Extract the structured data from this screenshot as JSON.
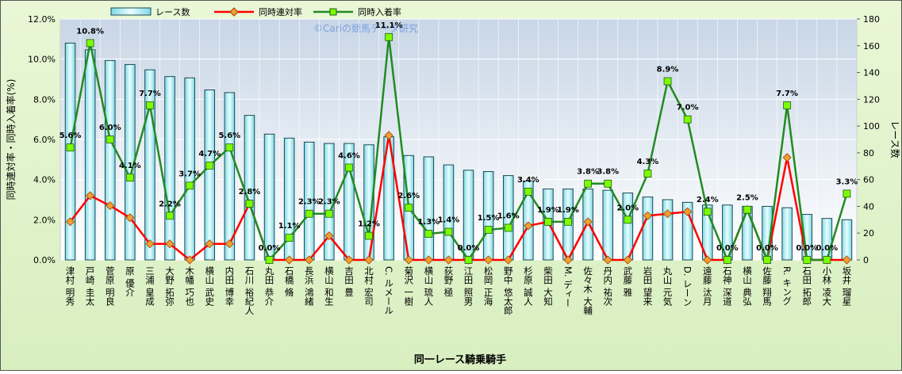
{
  "chart_data": {
    "type": "bar-line",
    "x_label": "同一レース騎乗騎手",
    "y_label": "同時連対率・同時入着率(%)",
    "y2_label": "レース数",
    "annotation": "©Cariの競馬データ研究",
    "categories": [
      "津村 明秀",
      "戸崎 圭太",
      "菅原 明良",
      "原 優介",
      "三浦 皇成",
      "大野 拓弥",
      "木幡 巧也",
      "横山 武史",
      "内田 博幸",
      "石川 裕紀人",
      "丸田 恭介",
      "石橋 脩",
      "長浜 鴻緒",
      "横山 和生",
      "吉田 豊",
      "北村 宏司",
      "C. ルメール",
      "菊沢 一樹",
      "横山 琉人",
      "荻野 極",
      "江田 照男",
      "松岡 正海",
      "野中 悠太郎",
      "杉原 誠人",
      "柴田 大知",
      "M. ディー",
      "佐々木 大輔",
      "丹内 祐次",
      "武藤 雅",
      "岩田 望来",
      "丸山 元気",
      "D. レーン",
      "遠藤 汰月",
      "石神 深道",
      "横山 典弘",
      "佐藤 翔馬",
      "R. キング",
      "石田 拓郎",
      "小林 凌大",
      "坂井 瑠星"
    ],
    "series": [
      {
        "name": "レース数",
        "type": "bar",
        "axis": "y2",
        "color": "#c8f4f8",
        "values": [
          162,
          157,
          149,
          146,
          142,
          137,
          136,
          127,
          125,
          108,
          94,
          91,
          88,
          87,
          87,
          86,
          92,
          78,
          77,
          71,
          67,
          66,
          63,
          59,
          53,
          53,
          53,
          52,
          50,
          47,
          45,
          43,
          41,
          41,
          40,
          40,
          39,
          34,
          31,
          30
        ]
      },
      {
        "name": "同時連対率",
        "type": "line",
        "color": "#ff0000",
        "marker_color": "#f0a030",
        "values": [
          1.9,
          3.2,
          2.7,
          2.1,
          0.8,
          0.8,
          0,
          0.8,
          0.8,
          2.8,
          0,
          0,
          0,
          1.2,
          0,
          0,
          6.2,
          0,
          0,
          0,
          0,
          0,
          0,
          1.7,
          1.9,
          0,
          1.9,
          0,
          0,
          2.2,
          2.3,
          2.4,
          0,
          0,
          2.5,
          0,
          5.1,
          0,
          0,
          0
        ]
      },
      {
        "name": "同時入着率",
        "type": "line",
        "color": "#228b22",
        "marker_color": "#7cfc00",
        "values": [
          5.6,
          10.8,
          6.0,
          4.1,
          7.7,
          2.2,
          3.7,
          4.7,
          5.6,
          2.8,
          0.0,
          1.1,
          2.3,
          2.3,
          4.6,
          1.2,
          11.1,
          2.6,
          1.3,
          1.4,
          0.0,
          1.5,
          1.6,
          3.4,
          1.9,
          1.9,
          3.8,
          3.8,
          2.0,
          4.3,
          8.9,
          7.0,
          2.4,
          0.0,
          2.5,
          0.0,
          7.7,
          0.0,
          0.0,
          3.3
        ],
        "value_labels": [
          "5.6%",
          "10.8%",
          "6.0%",
          "4.1%",
          "7.7%",
          "2.2%",
          "3.7%",
          "4.7%",
          "5.6%",
          "2.8%",
          "0.0%",
          "1.1%",
          "2.3%",
          "2.3%",
          "4.6%",
          "1.2%",
          "11.1%",
          "2.6%",
          "1.3%",
          "1.4%",
          "0.0%",
          "1.5%",
          "1.6%",
          "3.4%",
          "1.9%",
          "1.9%",
          "3.8%",
          "3.8%",
          "2.0%",
          "4.3%",
          "8.9%",
          "7.0%",
          "2.4%",
          "0.0%",
          "2.5%",
          "0.0%",
          "7.7%",
          "0.0%",
          "0.0%",
          "3.3%"
        ]
      }
    ],
    "ylim": [
      0,
      12
    ],
    "yticks": [
      {
        "value": 0,
        "label": "0.0%"
      },
      {
        "value": 2,
        "label": "2.0%"
      },
      {
        "value": 4,
        "label": "4.0%"
      },
      {
        "value": 6,
        "label": "6.0%"
      },
      {
        "value": 8,
        "label": "8.0%"
      },
      {
        "value": 10,
        "label": "10.0%"
      },
      {
        "value": 12,
        "label": "12.0%"
      }
    ],
    "y2lim": [
      0,
      180
    ],
    "y2ticks": [
      0,
      20,
      40,
      60,
      80,
      100,
      120,
      140,
      160,
      180
    ],
    "grid": true
  }
}
